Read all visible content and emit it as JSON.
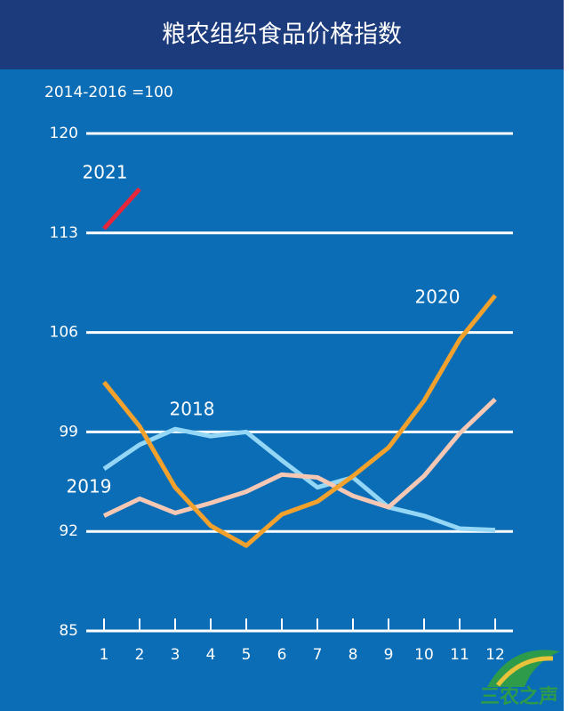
{
  "chart_data": {
    "type": "line",
    "title": "粮农组织食品价格指数",
    "subtitle": "2014-2016 =100",
    "watermark": "三农之声",
    "categories": [
      "1",
      "2",
      "3",
      "4",
      "5",
      "6",
      "7",
      "8",
      "9",
      "10",
      "11",
      "12"
    ],
    "series": [
      {
        "name": "2018",
        "color": "#93d6f5",
        "values": [
          96.4,
          98.1,
          99.2,
          98.7,
          99.0,
          97.0,
          95.1,
          95.8,
          93.7,
          93.1,
          92.2,
          92.1
        ]
      },
      {
        "name": "2019",
        "color": "#f6c8b4",
        "values": [
          93.1,
          94.3,
          93.3,
          94.0,
          94.8,
          96.0,
          95.8,
          94.5,
          93.7,
          95.9,
          98.9,
          101.3
        ]
      },
      {
        "name": "2020",
        "color": "#f2a22c",
        "values": [
          102.5,
          99.4,
          95.1,
          92.4,
          91.0,
          93.2,
          94.1,
          95.9,
          97.9,
          101.2,
          105.5,
          108.6
        ]
      },
      {
        "name": "2021",
        "color": "#e6263a",
        "values": [
          113.3,
          116.1,
          null,
          null,
          null,
          null,
          null,
          null,
          null,
          null,
          null,
          null
        ]
      }
    ],
    "ylim": [
      85,
      120
    ],
    "yticks": [
      85,
      92,
      99,
      106,
      113,
      120
    ],
    "grid": true
  }
}
